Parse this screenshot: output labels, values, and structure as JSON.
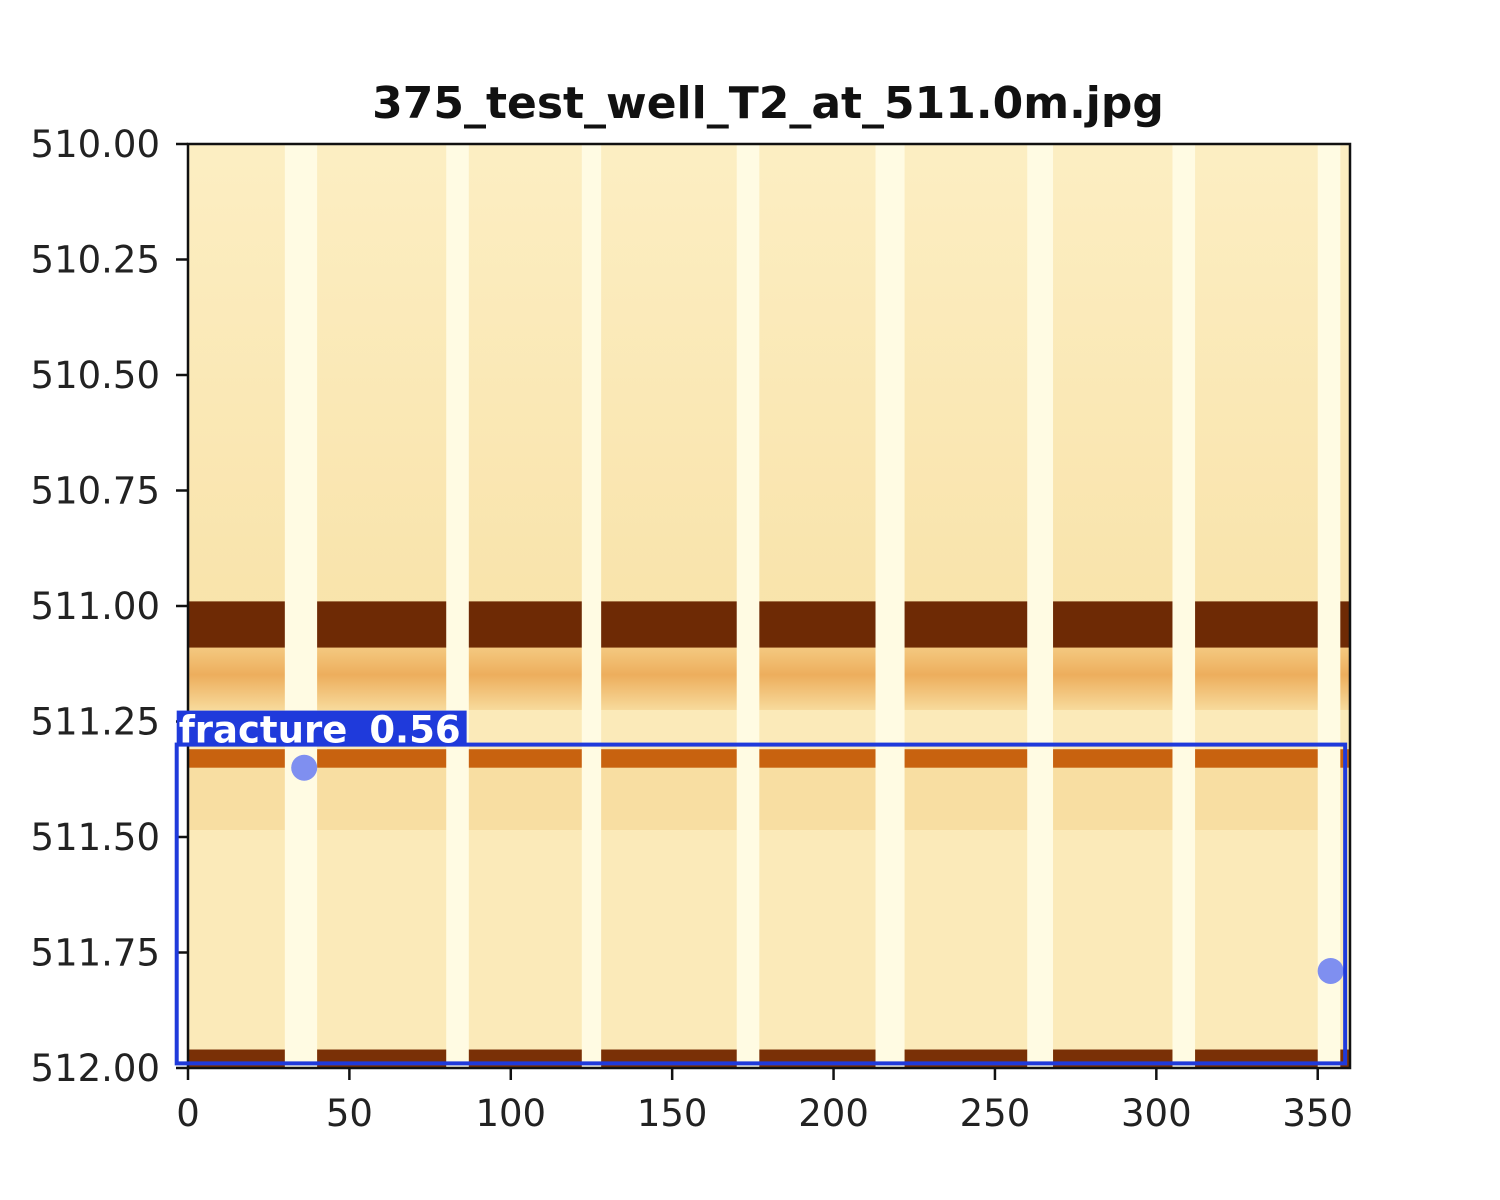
{
  "title": "375_test_well_T2_at_511.0m.jpg",
  "axes": {
    "x_ticks": [
      "0",
      "50",
      "100",
      "150",
      "200",
      "250",
      "300",
      "350"
    ],
    "y_ticks": [
      "510.00",
      "510.25",
      "510.50",
      "510.75",
      "511.00",
      "511.25",
      "511.50",
      "511.75",
      "512.00"
    ]
  },
  "image": {
    "x_range": [
      0,
      360
    ],
    "depth_range": [
      510.0,
      512.0
    ],
    "colormap": [
      "#fffbe3",
      "#fbe9b8",
      "#f1b765",
      "#d97a1f",
      "#6e2a05"
    ],
    "gap_columns_deg": [
      [
        30,
        40
      ],
      [
        80,
        87
      ],
      [
        122,
        128
      ],
      [
        170,
        177
      ],
      [
        213,
        222
      ],
      [
        260,
        268
      ],
      [
        305,
        312
      ],
      [
        350,
        357
      ]
    ],
    "dark_bands": [
      {
        "name": "main-dark-band",
        "depth_top": 510.99,
        "depth_bottom": 511.09,
        "color": "#6e2a05"
      },
      {
        "name": "lower-dark-band",
        "depth_top": 511.31,
        "depth_bottom": 511.35,
        "color": "#c8620f"
      },
      {
        "name": "bottom-dark-band",
        "depth_top": 511.96,
        "depth_bottom": 512.0,
        "color": "#7a3006"
      }
    ]
  },
  "detection": {
    "label": "fracture",
    "score": "0.56",
    "x_range_deg": [
      -3.5,
      358.5
    ],
    "depth_range": [
      511.3,
      511.99
    ],
    "color": "#1f3adb"
  },
  "markers": [
    {
      "name": "upper-blob",
      "x_deg": 36,
      "depth": 511.35,
      "color": "#7f8ff0"
    },
    {
      "name": "lower-blob",
      "x_deg": 354,
      "depth": 511.79,
      "color": "#7f8ff0"
    }
  ]
}
